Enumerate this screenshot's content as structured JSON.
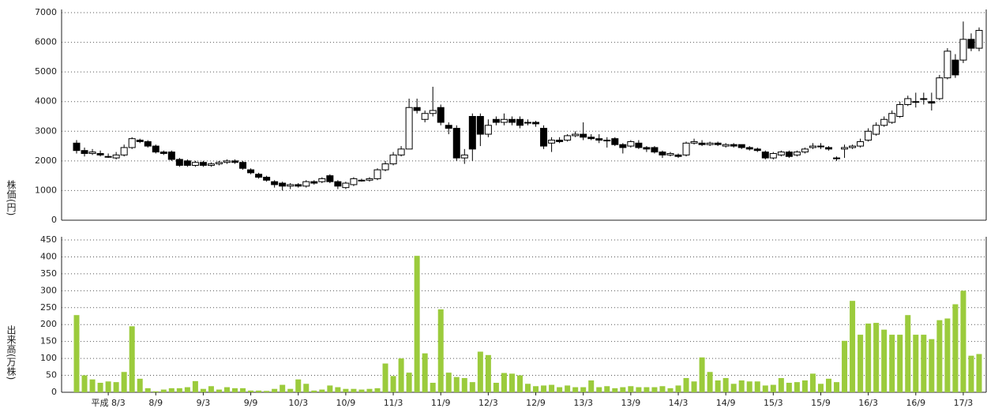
{
  "chart_data": [
    {
      "type": "candlestick",
      "ylabel": "株価(円)",
      "ylim": [
        0,
        7000
      ],
      "yticks": [
        0,
        1000,
        2000,
        3000,
        4000,
        5000,
        6000,
        7000
      ],
      "grid": true,
      "up_color": "#ffffff",
      "down_color": "#000000",
      "open": [
        2600,
        2350,
        2250,
        2250,
        2150,
        2100,
        2200,
        2450,
        2700,
        2650,
        2500,
        2300,
        2300,
        2050,
        2000,
        1850,
        1950,
        1850,
        1900,
        1950,
        2000,
        1950,
        1700,
        1550,
        1450,
        1300,
        1250,
        1150,
        1200,
        1150,
        1300,
        1300,
        1500,
        1300,
        1100,
        1200,
        1350,
        1350,
        1400,
        1700,
        1900,
        2200,
        2400,
        3800,
        3400,
        3600,
        3800,
        3200,
        3100,
        2100,
        3500,
        3500,
        2900,
        3400,
        3300,
        3400,
        3400,
        3300,
        3300,
        3100,
        2600,
        2700,
        2700,
        2850,
        2900,
        2800,
        2750,
        2700,
        2750,
        2550,
        2500,
        2600,
        2450,
        2450,
        2300,
        2200,
        2200,
        2200,
        2600,
        2600,
        2550,
        2600,
        2500,
        2550,
        2550,
        2450,
        2400,
        2300,
        2100,
        2200,
        2300,
        2200,
        2300,
        2450,
        2500,
        2450,
        2100,
        2400,
        2450,
        2500,
        2700,
        2900,
        3200,
        3300,
        3500,
        3900,
        4000,
        4100,
        4000,
        4100,
        4800,
        5400,
        5400,
        6100,
        5800
      ],
      "high": [
        2700,
        2450,
        2400,
        2350,
        2250,
        2300,
        2550,
        2800,
        2750,
        2700,
        2550,
        2350,
        2350,
        2100,
        2050,
        2000,
        2000,
        1950,
        2000,
        2050,
        2050,
        2000,
        1750,
        1600,
        1500,
        1350,
        1300,
        1250,
        1250,
        1350,
        1350,
        1450,
        1550,
        1350,
        1300,
        1450,
        1400,
        1450,
        1750,
        2000,
        2300,
        2500,
        4100,
        4100,
        3700,
        4500,
        3900,
        3300,
        3200,
        2400,
        3600,
        3600,
        3400,
        3500,
        3600,
        3500,
        3500,
        3400,
        3350,
        3200,
        2800,
        2800,
        2900,
        3000,
        3300,
        2900,
        2900,
        2800,
        2800,
        2600,
        2700,
        2700,
        2500,
        2500,
        2350,
        2300,
        2250,
        2650,
        2750,
        2700,
        2650,
        2650,
        2600,
        2600,
        2550,
        2500,
        2450,
        2350,
        2300,
        2350,
        2350,
        2350,
        2450,
        2600,
        2600,
        2500,
        2150,
        2550,
        2550,
        2750,
        3100,
        3300,
        3500,
        3700,
        4000,
        4200,
        4300,
        4300,
        4300,
        4900,
        5800,
        5600,
        6700,
        6300,
        6500
      ],
      "low": [
        2250,
        2150,
        2200,
        2150,
        2100,
        2050,
        2150,
        2400,
        2600,
        2450,
        2250,
        2200,
        2000,
        1800,
        1800,
        1800,
        1800,
        1800,
        1850,
        1900,
        1900,
        1700,
        1550,
        1400,
        1300,
        1100,
        1000,
        1050,
        1100,
        1100,
        1200,
        1250,
        1250,
        1050,
        1050,
        1150,
        1300,
        1300,
        1350,
        1650,
        1850,
        2150,
        2400,
        3600,
        3300,
        3500,
        3200,
        2900,
        2000,
        1900,
        2000,
        2500,
        2800,
        3200,
        3200,
        3200,
        3100,
        3200,
        3150,
        2400,
        2300,
        2600,
        2650,
        2800,
        2700,
        2700,
        2600,
        2450,
        2500,
        2250,
        2450,
        2400,
        2300,
        2250,
        2100,
        2150,
        2100,
        2150,
        2550,
        2500,
        2500,
        2500,
        2450,
        2450,
        2400,
        2350,
        2300,
        2050,
        2050,
        2150,
        2100,
        2150,
        2250,
        2400,
        2400,
        2350,
        2000,
        2100,
        2400,
        2450,
        2650,
        2850,
        3150,
        3250,
        3450,
        3850,
        3800,
        3900,
        3700,
        4050,
        4750,
        4800,
        5300,
        5700,
        5700
      ],
      "close": [
        2350,
        2250,
        2300,
        2200,
        2150,
        2200,
        2450,
        2750,
        2650,
        2500,
        2300,
        2250,
        2050,
        1850,
        1850,
        1950,
        1850,
        1900,
        1950,
        2000,
        1950,
        1750,
        1600,
        1450,
        1350,
        1200,
        1150,
        1200,
        1150,
        1300,
        1250,
        1400,
        1300,
        1150,
        1250,
        1400,
        1350,
        1400,
        1700,
        1900,
        2200,
        2400,
        3800,
        3700,
        3600,
        3700,
        3300,
        3100,
        2100,
        2200,
        2400,
        2900,
        3200,
        3300,
        3400,
        3300,
        3200,
        3300,
        3250,
        2500,
        2700,
        2650,
        2850,
        2900,
        2800,
        2750,
        2700,
        2700,
        2550,
        2450,
        2650,
        2450,
        2400,
        2300,
        2200,
        2250,
        2150,
        2600,
        2650,
        2550,
        2600,
        2550,
        2550,
        2500,
        2450,
        2400,
        2350,
        2100,
        2250,
        2300,
        2150,
        2300,
        2400,
        2500,
        2500,
        2400,
        2100,
        2450,
        2500,
        2650,
        3000,
        3200,
        3400,
        3600,
        3900,
        4100,
        4000,
        4100,
        3950,
        4800,
        5700,
        4900,
        6100,
        5800,
        6400
      ]
    },
    {
      "type": "bar",
      "ylabel": "出来高(万株)",
      "ylim": [
        0,
        450
      ],
      "yticks": [
        0,
        50,
        100,
        150,
        200,
        250,
        300,
        350,
        400,
        450
      ],
      "grid": true,
      "color": "#9bcb3c",
      "categories": [
        null,
        null,
        null,
        null,
        "平成 8/3",
        null,
        null,
        null,
        null,
        null,
        "8/9",
        null,
        null,
        null,
        null,
        null,
        "9/3",
        null,
        null,
        null,
        null,
        null,
        "9/9",
        null,
        null,
        null,
        null,
        null,
        "10/3",
        null,
        null,
        null,
        null,
        null,
        "10/9",
        null,
        null,
        null,
        null,
        null,
        "11/3",
        null,
        null,
        null,
        null,
        null,
        "11/9",
        null,
        null,
        null,
        null,
        null,
        "12/3",
        null,
        null,
        null,
        null,
        null,
        "12/9",
        null,
        null,
        null,
        null,
        null,
        "13/3",
        null,
        null,
        null,
        null,
        null,
        "13/9",
        null,
        null,
        null,
        null,
        null,
        "14/3",
        null,
        null,
        null,
        null,
        null,
        "14/9",
        null,
        null,
        null,
        null,
        null,
        "15/3",
        null,
        null,
        null,
        null,
        null,
        "15/9",
        null,
        null,
        null,
        null,
        null,
        "16/3",
        null,
        null,
        null,
        null,
        null,
        "16/9",
        null,
        null,
        null,
        null,
        null,
        "17/3",
        null,
        null
      ],
      "values": [
        228,
        50,
        38,
        28,
        32,
        30,
        60,
        195,
        40,
        12,
        3,
        8,
        12,
        12,
        15,
        33,
        10,
        18,
        8,
        15,
        12,
        12,
        5,
        5,
        4,
        10,
        22,
        10,
        38,
        25,
        5,
        8,
        20,
        15,
        10,
        10,
        8,
        10,
        12,
        85,
        48,
        100,
        58,
        403,
        115,
        28,
        245,
        58,
        45,
        42,
        30,
        120,
        110,
        28,
        57,
        55,
        50,
        25,
        18,
        20,
        22,
        15,
        20,
        15,
        15,
        35,
        15,
        18,
        12,
        15,
        18,
        15,
        15,
        15,
        18,
        12,
        20,
        42,
        32,
        103,
        60,
        35,
        42,
        25,
        35,
        32,
        32,
        20,
        22,
        42,
        28,
        30,
        35,
        55,
        25,
        40,
        30,
        152,
        270,
        170,
        203,
        205,
        185,
        170,
        170,
        228,
        170,
        170,
        157,
        213,
        218,
        260,
        300,
        108,
        113
      ]
    }
  ]
}
